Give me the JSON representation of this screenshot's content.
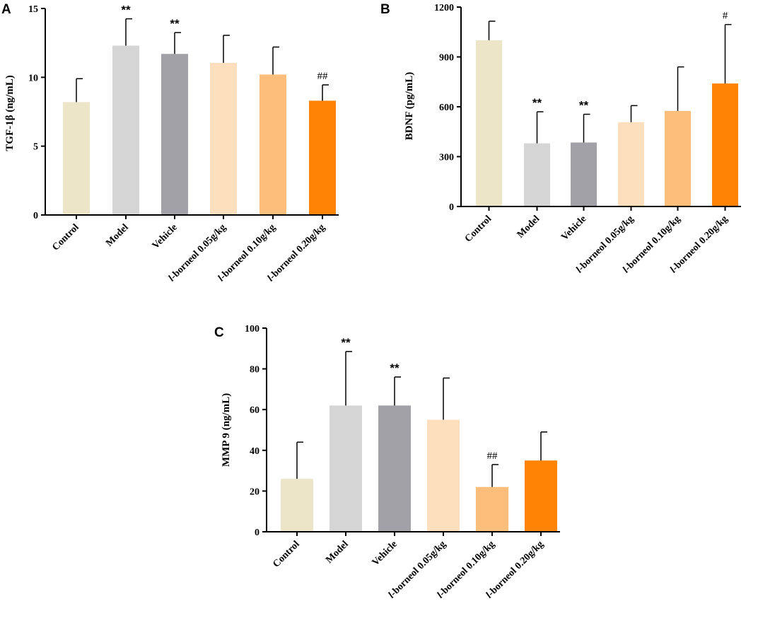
{
  "chart_data": [
    {
      "panel": "A",
      "type": "bar",
      "ylabel": "TGF-1β (ng/mL)",
      "ylim": [
        0,
        15
      ],
      "yticks": [
        0,
        5,
        10,
        15
      ],
      "categories": [
        {
          "prefix": "Control",
          "italic": "",
          "suffix": ""
        },
        {
          "prefix": "Model",
          "italic": "",
          "suffix": ""
        },
        {
          "prefix": "Vehicle",
          "italic": "",
          "suffix": ""
        },
        {
          "prefix": "",
          "italic": "l",
          "suffix": "-borneol 0.05g/kg"
        },
        {
          "prefix": "",
          "italic": "l",
          "suffix": "-borneol 0.10g/kg"
        },
        {
          "prefix": "",
          "italic": "l",
          "suffix": "-borneol 0.20g/kg"
        }
      ],
      "values": [
        8.2,
        12.3,
        11.7,
        11.05,
        10.2,
        8.3
      ],
      "errors": [
        1.7,
        1.95,
        1.55,
        2.0,
        2.0,
        1.15
      ],
      "annotations": [
        "",
        "**",
        "**",
        "",
        "",
        "##"
      ],
      "colors": [
        "#EDE5C8",
        "#D5D5D5",
        "#A2A1A8",
        "#FEDFBD",
        "#FDBE7C",
        "#FF8304"
      ]
    },
    {
      "panel": "B",
      "type": "bar",
      "ylabel": "BDNF (pg/mL)",
      "ylim": [
        0,
        1200
      ],
      "yticks": [
        0,
        300,
        600,
        900,
        1200
      ],
      "categories": [
        {
          "prefix": "Control",
          "italic": "",
          "suffix": ""
        },
        {
          "prefix": "Model",
          "italic": "",
          "suffix": ""
        },
        {
          "prefix": "Vehicle",
          "italic": "",
          "suffix": ""
        },
        {
          "prefix": "",
          "italic": "l",
          "suffix": "-borneol 0.05g/kg"
        },
        {
          "prefix": "",
          "italic": "l",
          "suffix": "-borneol 0.10g/kg"
        },
        {
          "prefix": "",
          "italic": "l",
          "suffix": "-borneol 0.20g/kg"
        }
      ],
      "values": [
        1000,
        380,
        385,
        507,
        575,
        740
      ],
      "errors": [
        115,
        190,
        170,
        100,
        265,
        355
      ],
      "annotations": [
        "",
        "**",
        "**",
        "",
        "",
        "#"
      ],
      "colors": [
        "#EDE5C8",
        "#D5D5D5",
        "#A2A1A8",
        "#FEDFBD",
        "#FDBE7C",
        "#FF8304"
      ]
    },
    {
      "panel": "C",
      "type": "bar",
      "ylabel": "MMP 9 (ng/mL)",
      "ylim": [
        0,
        100
      ],
      "yticks": [
        0,
        20,
        40,
        60,
        80,
        100
      ],
      "categories": [
        {
          "prefix": "Control",
          "italic": "",
          "suffix": ""
        },
        {
          "prefix": "Model",
          "italic": "",
          "suffix": ""
        },
        {
          "prefix": "Vehicle",
          "italic": "",
          "suffix": ""
        },
        {
          "prefix": "",
          "italic": "l",
          "suffix": "-borneol 0.05g/kg"
        },
        {
          "prefix": "",
          "italic": "l",
          "suffix": "-borneol 0.10g/kg"
        },
        {
          "prefix": "",
          "italic": "l",
          "suffix": "-borneol 0.20g/kg"
        }
      ],
      "values": [
        26,
        62,
        62,
        55,
        22,
        35
      ],
      "errors": [
        18,
        26.5,
        14,
        20.5,
        11,
        14
      ],
      "annotations": [
        "",
        "**",
        "**",
        "",
        "##",
        ""
      ],
      "colors": [
        "#EDE5C8",
        "#D5D5D5",
        "#A2A1A8",
        "#FEDFBD",
        "#FDBE7C",
        "#FF8304"
      ]
    }
  ]
}
